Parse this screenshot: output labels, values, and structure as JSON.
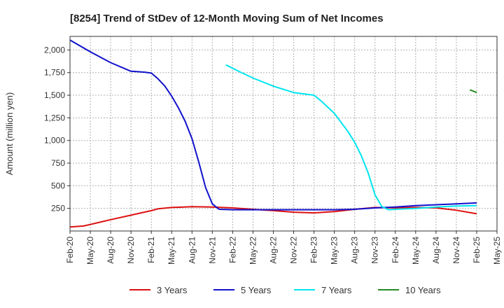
{
  "chart_data": {
    "type": "line",
    "title": "[8254]  Trend of StDev of 12-Month Moving Sum of Net Incomes",
    "ylabel": "Amount (million yen)",
    "xlabel": "",
    "ylim": [
      0,
      2150
    ],
    "yticks": [
      250,
      500,
      750,
      1000,
      1250,
      1500,
      1750,
      2000
    ],
    "ytick_labels": [
      "250",
      "500",
      "750",
      "1,000",
      "1,250",
      "1,500",
      "1,750",
      "2,000"
    ],
    "xticks": [
      "2020-02",
      "2020-05",
      "2020-08",
      "2020-11",
      "2021-02",
      "2021-05",
      "2021-08",
      "2021-11",
      "2022-02",
      "2022-05",
      "2022-08",
      "2022-11",
      "2023-02",
      "2023-05",
      "2023-08",
      "2023-11",
      "2024-02",
      "2024-05",
      "2024-08",
      "2024-11",
      "2025-02",
      "2025-05"
    ],
    "xtick_labels": [
      "Feb-20",
      "May-20",
      "Aug-20",
      "Nov-20",
      "Feb-21",
      "May-21",
      "Aug-21",
      "Nov-21",
      "Feb-22",
      "May-22",
      "Aug-22",
      "Nov-22",
      "Feb-23",
      "May-23",
      "Aug-23",
      "Nov-23",
      "Feb-24",
      "May-24",
      "Aug-24",
      "Nov-24",
      "Feb-25",
      "May-25"
    ],
    "grid": true,
    "legend_position": "bottom",
    "series": [
      {
        "name": "3 Years",
        "color": "#dd1111",
        "points": [
          [
            "2020-02",
            45
          ],
          [
            "2020-04",
            55
          ],
          [
            "2020-06",
            90
          ],
          [
            "2020-08",
            125
          ],
          [
            "2020-11",
            175
          ],
          [
            "2021-02",
            225
          ],
          [
            "2021-03",
            245
          ],
          [
            "2021-05",
            260
          ],
          [
            "2021-08",
            268
          ],
          [
            "2021-11",
            265
          ],
          [
            "2022-02",
            255
          ],
          [
            "2022-05",
            240
          ],
          [
            "2022-08",
            225
          ],
          [
            "2022-11",
            208
          ],
          [
            "2023-02",
            200
          ],
          [
            "2023-05",
            215
          ],
          [
            "2023-08",
            240
          ],
          [
            "2023-11",
            260
          ],
          [
            "2024-02",
            255
          ],
          [
            "2024-05",
            260
          ],
          [
            "2024-08",
            255
          ],
          [
            "2024-11",
            230
          ],
          [
            "2025-02",
            190
          ]
        ]
      },
      {
        "name": "5 Years",
        "color": "#1111cc",
        "points": [
          [
            "2020-02",
            2110
          ],
          [
            "2020-05",
            1980
          ],
          [
            "2020-08",
            1860
          ],
          [
            "2020-11",
            1765
          ],
          [
            "2020-12",
            1760
          ],
          [
            "2021-01",
            1755
          ],
          [
            "2021-02",
            1745
          ],
          [
            "2021-03",
            1680
          ],
          [
            "2021-04",
            1600
          ],
          [
            "2021-05",
            1490
          ],
          [
            "2021-06",
            1360
          ],
          [
            "2021-07",
            1210
          ],
          [
            "2021-08",
            1020
          ],
          [
            "2021-09",
            760
          ],
          [
            "2021-10",
            480
          ],
          [
            "2021-11",
            300
          ],
          [
            "2021-12",
            240
          ],
          [
            "2022-02",
            235
          ],
          [
            "2022-05",
            235
          ],
          [
            "2022-08",
            235
          ],
          [
            "2022-11",
            235
          ],
          [
            "2023-02",
            235
          ],
          [
            "2023-05",
            235
          ],
          [
            "2023-08",
            240
          ],
          [
            "2023-11",
            255
          ],
          [
            "2024-02",
            265
          ],
          [
            "2024-05",
            280
          ],
          [
            "2024-08",
            290
          ],
          [
            "2024-11",
            300
          ],
          [
            "2025-02",
            310
          ]
        ]
      },
      {
        "name": "7 Years",
        "color": "#00e5ee",
        "points": [
          [
            "2022-01",
            1835
          ],
          [
            "2022-03",
            1760
          ],
          [
            "2022-05",
            1690
          ],
          [
            "2022-08",
            1600
          ],
          [
            "2022-11",
            1530
          ],
          [
            "2022-12",
            1520
          ],
          [
            "2023-01",
            1510
          ],
          [
            "2023-02",
            1500
          ],
          [
            "2023-03",
            1440
          ],
          [
            "2023-05",
            1300
          ],
          [
            "2023-07",
            1100
          ],
          [
            "2023-08",
            980
          ],
          [
            "2023-09",
            830
          ],
          [
            "2023-10",
            640
          ],
          [
            "2023-11",
            400
          ],
          [
            "2023-12",
            270
          ],
          [
            "2024-01",
            235
          ],
          [
            "2024-02",
            240
          ],
          [
            "2024-05",
            250
          ],
          [
            "2024-08",
            265
          ],
          [
            "2024-11",
            275
          ],
          [
            "2025-02",
            280
          ]
        ]
      },
      {
        "name": "10 Years",
        "color": "#228b22",
        "points": [
          [
            "2025-01",
            1560
          ],
          [
            "2025-02",
            1530
          ]
        ]
      }
    ]
  }
}
